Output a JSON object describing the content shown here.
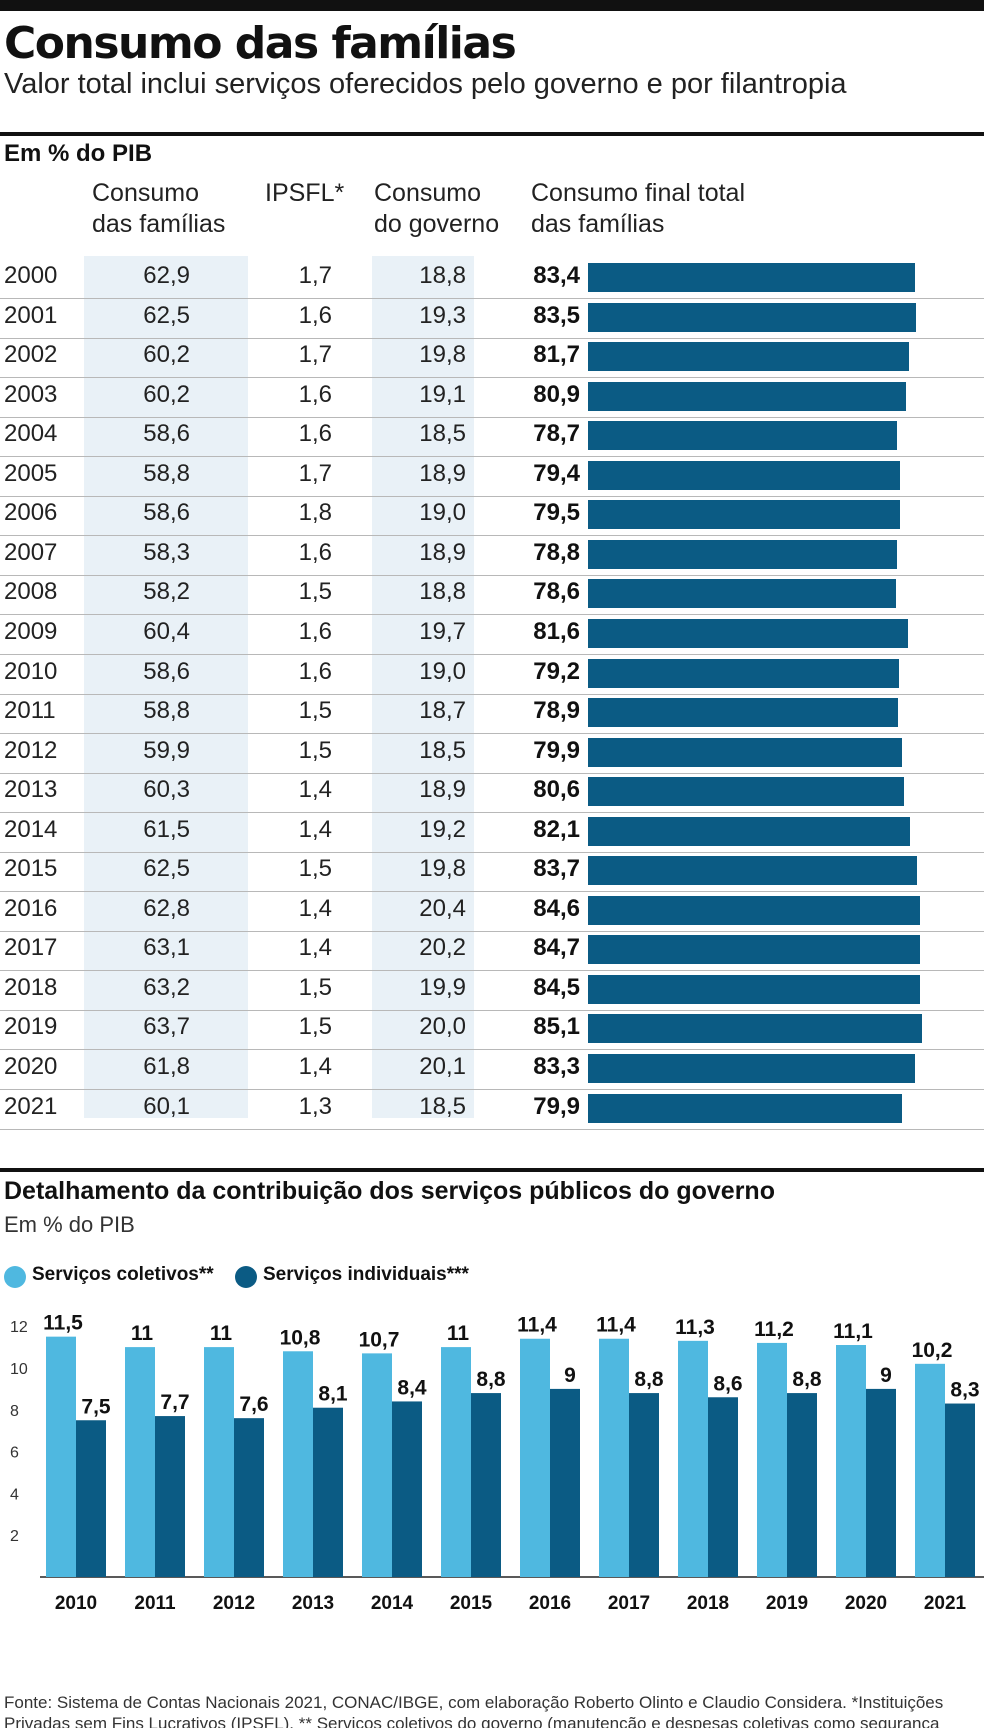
{
  "header": {
    "title": "Consumo das famílias",
    "subtitle": "Valor total inclui serviços oferecidos pelo governo e por filantropia"
  },
  "table": {
    "unit_label": "Em % do PIB",
    "columns": {
      "consumo_familias": [
        "Consumo",
        "das famílias"
      ],
      "ipsfl": "IPSFL*",
      "consumo_governo": [
        "Consumo",
        "do governo"
      ],
      "consumo_total": [
        "Consumo final total",
        "das famílias"
      ]
    },
    "rows": [
      {
        "year": "2000",
        "familias": "62,9",
        "ipsfl": "1,7",
        "governo": "18,8",
        "total": "83,4",
        "total_value": 83.4
      },
      {
        "year": "2001",
        "familias": "62,5",
        "ipsfl": "1,6",
        "governo": "19,3",
        "total": "83,5",
        "total_value": 83.5
      },
      {
        "year": "2002",
        "familias": "60,2",
        "ipsfl": "1,7",
        "governo": "19,8",
        "total": "81,7",
        "total_value": 81.7
      },
      {
        "year": "2003",
        "familias": "60,2",
        "ipsfl": "1,6",
        "governo": "19,1",
        "total": "80,9",
        "total_value": 80.9
      },
      {
        "year": "2004",
        "familias": "58,6",
        "ipsfl": "1,6",
        "governo": "18,5",
        "total": "78,7",
        "total_value": 78.7
      },
      {
        "year": "2005",
        "familias": "58,8",
        "ipsfl": "1,7",
        "governo": "18,9",
        "total": "79,4",
        "total_value": 79.4
      },
      {
        "year": "2006",
        "familias": "58,6",
        "ipsfl": "1,8",
        "governo": "19,0",
        "total": "79,5",
        "total_value": 79.5
      },
      {
        "year": "2007",
        "familias": "58,3",
        "ipsfl": "1,6",
        "governo": "18,9",
        "total": "78,8",
        "total_value": 78.8
      },
      {
        "year": "2008",
        "familias": "58,2",
        "ipsfl": "1,5",
        "governo": "18,8",
        "total": "78,6",
        "total_value": 78.6
      },
      {
        "year": "2009",
        "familias": "60,4",
        "ipsfl": "1,6",
        "governo": "19,7",
        "total": "81,6",
        "total_value": 81.6
      },
      {
        "year": "2010",
        "familias": "58,6",
        "ipsfl": "1,6",
        "governo": "19,0",
        "total": "79,2",
        "total_value": 79.2
      },
      {
        "year": "2011",
        "familias": "58,8",
        "ipsfl": "1,5",
        "governo": "18,7",
        "total": "78,9",
        "total_value": 78.9
      },
      {
        "year": "2012",
        "familias": "59,9",
        "ipsfl": "1,5",
        "governo": "18,5",
        "total": "79,9",
        "total_value": 79.9
      },
      {
        "year": "2013",
        "familias": "60,3",
        "ipsfl": "1,4",
        "governo": "18,9",
        "total": "80,6",
        "total_value": 80.6
      },
      {
        "year": "2014",
        "familias": "61,5",
        "ipsfl": "1,4",
        "governo": "19,2",
        "total": "82,1",
        "total_value": 82.1
      },
      {
        "year": "2015",
        "familias": "62,5",
        "ipsfl": "1,5",
        "governo": "19,8",
        "total": "83,7",
        "total_value": 83.7
      },
      {
        "year": "2016",
        "familias": "62,8",
        "ipsfl": "1,4",
        "governo": "20,4",
        "total": "84,6",
        "total_value": 84.6
      },
      {
        "year": "2017",
        "familias": "63,1",
        "ipsfl": "1,4",
        "governo": "20,2",
        "total": "84,7",
        "total_value": 84.7
      },
      {
        "year": "2018",
        "familias": "63,2",
        "ipsfl": "1,5",
        "governo": "19,9",
        "total": "84,5",
        "total_value": 84.5
      },
      {
        "year": "2019",
        "familias": "63,7",
        "ipsfl": "1,5",
        "governo": "20,0",
        "total": "85,1",
        "total_value": 85.1
      },
      {
        "year": "2020",
        "familias": "61,8",
        "ipsfl": "1,4",
        "governo": "20,1",
        "total": "83,3",
        "total_value": 83.3
      },
      {
        "year": "2021",
        "familias": "60,1",
        "ipsfl": "1,3",
        "governo": "18,5",
        "total": "79,9",
        "total_value": 79.9
      }
    ]
  },
  "section2": {
    "title": "Detalhamento da contribuição dos serviços públicos do governo",
    "unit_label": "Em % do PIB"
  },
  "colors": {
    "coletivos": "#4fb8e0",
    "individuais": "#0b5b84",
    "table_bar": "#0b5b84",
    "shade": "#e9f1f7"
  },
  "chart_data": [
    {
      "type": "bar",
      "categories": [
        "2000",
        "2001",
        "2002",
        "2003",
        "2004",
        "2005",
        "2006",
        "2007",
        "2008",
        "2009",
        "2010",
        "2011",
        "2012",
        "2013",
        "2014",
        "2015",
        "2016",
        "2017",
        "2018",
        "2019",
        "2020",
        "2021"
      ],
      "orientation": "horizontal",
      "series": [
        {
          "name": "Consumo final total das famílias",
          "values": [
            83.4,
            83.5,
            81.7,
            80.9,
            78.7,
            79.4,
            79.5,
            78.8,
            78.6,
            81.6,
            79.2,
            78.9,
            79.9,
            80.6,
            82.1,
            83.7,
            84.6,
            84.7,
            84.5,
            85.1,
            83.3,
            79.9
          ]
        }
      ],
      "title": "Consumo das famílias",
      "xlabel": "",
      "ylabel": ""
    },
    {
      "type": "bar",
      "categories": [
        "2010",
        "2011",
        "2012",
        "2013",
        "2014",
        "2015",
        "2016",
        "2017",
        "2018",
        "2019",
        "2020",
        "2021"
      ],
      "series": [
        {
          "name": "Serviços coletivos**",
          "values": [
            11.5,
            11,
            11,
            10.8,
            10.7,
            11,
            11.4,
            11.4,
            11.3,
            11.2,
            11.1,
            10.2
          ],
          "labels": [
            "11,5",
            "11",
            "11",
            "10,8",
            "10,7",
            "11",
            "11,4",
            "11,4",
            "11,3",
            "11,2",
            "11,1",
            "10,2"
          ]
        },
        {
          "name": "Serviços individuais***",
          "values": [
            7.5,
            7.7,
            7.6,
            8.1,
            8.4,
            8.8,
            9,
            8.8,
            8.6,
            8.8,
            9,
            8.3
          ],
          "labels": [
            "7,5",
            "7,7",
            "7,6",
            "8,1",
            "8,4",
            "8,8",
            "9",
            "8,8",
            "8,6",
            "8,8",
            "9",
            "8,3"
          ]
        }
      ],
      "title": "Detalhamento da contribuição dos serviços públicos do governo",
      "ylabel": "Em % do PIB",
      "yticks": [
        2,
        4,
        6,
        8,
        10,
        12
      ],
      "ylim": [
        0,
        12.5
      ],
      "legend": "top-left",
      "grid": false
    }
  ],
  "footnote": "Fonte: Sistema de Contas Nacionais 2021, CONAC/IBGE, com elaboração Roberto Olinto e Claudio Considera. *Instituições Privadas sem Fins Lucrativos (IPSFL). ** Serviços coletivos do governo (manutenção e despesas coletivas como segurança pública). *** Serviços individuais do governo (contribuição direta para o bem-estar das famílias, como uso efetivo de vagas no ensino público)"
}
